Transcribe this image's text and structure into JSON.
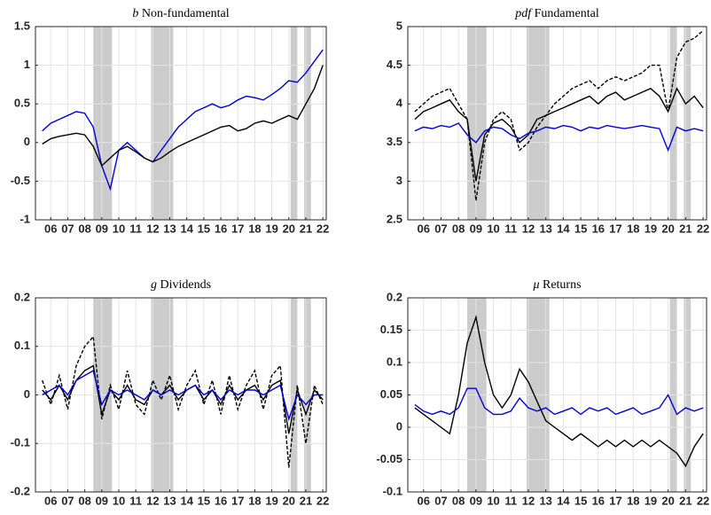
{
  "chart_data": [
    {
      "type": "line",
      "title_symbol": "b",
      "title": "Non-fundamental",
      "x": [
        5.5,
        6,
        6.5,
        7,
        7.5,
        8,
        8.5,
        9,
        9.5,
        10,
        10.5,
        11,
        11.5,
        12,
        12.5,
        13,
        13.5,
        14,
        14.5,
        15,
        15.5,
        16,
        16.5,
        17,
        17.5,
        18,
        18.5,
        19,
        19.5,
        20,
        20.5,
        21,
        21.5,
        22
      ],
      "xlim": [
        5.1,
        22.2
      ],
      "xticks": [
        {
          "value": 6,
          "label": "06"
        },
        {
          "value": 7,
          "label": "07"
        },
        {
          "value": 8,
          "label": "08"
        },
        {
          "value": 9,
          "label": "09"
        },
        {
          "value": 10,
          "label": "10"
        },
        {
          "value": 11,
          "label": "11"
        },
        {
          "value": 12,
          "label": "12"
        },
        {
          "value": 13,
          "label": "13"
        },
        {
          "value": 14,
          "label": "14"
        },
        {
          "value": 15,
          "label": "15"
        },
        {
          "value": 16,
          "label": "16"
        },
        {
          "value": 17,
          "label": "17"
        },
        {
          "value": 18,
          "label": "18"
        },
        {
          "value": 19,
          "label": "19"
        },
        {
          "value": 20,
          "label": "20"
        },
        {
          "value": 21,
          "label": "21"
        },
        {
          "value": 22,
          "label": "22"
        }
      ],
      "ylim": [
        -1,
        1.5
      ],
      "yticks": [
        -1,
        -0.5,
        0,
        0.5,
        1,
        1.5
      ],
      "grid": true,
      "shaded": [
        [
          8.5,
          9.6
        ],
        [
          11.9,
          13.2
        ],
        [
          20.1,
          20.5
        ],
        [
          20.9,
          21.3
        ]
      ],
      "shade_color": "#cccccc",
      "series": [
        {
          "color": "#0000d6",
          "style": "solid",
          "values": [
            0.15,
            0.25,
            0.3,
            0.35,
            0.4,
            0.38,
            0.2,
            -0.3,
            -0.6,
            -0.1,
            0.0,
            -0.1,
            -0.2,
            -0.25,
            -0.1,
            0.05,
            0.2,
            0.3,
            0.4,
            0.45,
            0.5,
            0.45,
            0.48,
            0.55,
            0.6,
            0.58,
            0.55,
            0.62,
            0.7,
            0.8,
            0.78,
            0.9,
            1.05,
            1.2
          ]
        },
        {
          "color": "#000000",
          "style": "solid",
          "values": [
            -0.02,
            0.05,
            0.08,
            0.1,
            0.12,
            0.1,
            -0.05,
            -0.3,
            -0.2,
            -0.1,
            -0.05,
            -0.12,
            -0.2,
            -0.25,
            -0.2,
            -0.12,
            -0.05,
            0.0,
            0.05,
            0.1,
            0.15,
            0.2,
            0.22,
            0.15,
            0.18,
            0.25,
            0.28,
            0.25,
            0.3,
            0.35,
            0.3,
            0.5,
            0.7,
            1.0
          ]
        }
      ]
    },
    {
      "type": "line",
      "title_symbol": "pdf",
      "title": "Fundamental",
      "x": [
        5.5,
        6,
        6.5,
        7,
        7.5,
        8,
        8.5,
        9,
        9.5,
        10,
        10.5,
        11,
        11.5,
        12,
        12.5,
        13,
        13.5,
        14,
        14.5,
        15,
        15.5,
        16,
        16.5,
        17,
        17.5,
        18,
        18.5,
        19,
        19.5,
        20,
        20.5,
        21,
        21.5,
        22
      ],
      "xlim": [
        5.1,
        22.2
      ],
      "xticks": [
        {
          "value": 6,
          "label": "06"
        },
        {
          "value": 7,
          "label": "07"
        },
        {
          "value": 8,
          "label": "08"
        },
        {
          "value": 9,
          "label": "09"
        },
        {
          "value": 10,
          "label": "10"
        },
        {
          "value": 11,
          "label": "11"
        },
        {
          "value": 12,
          "label": "12"
        },
        {
          "value": 13,
          "label": "13"
        },
        {
          "value": 14,
          "label": "14"
        },
        {
          "value": 15,
          "label": "15"
        },
        {
          "value": 16,
          "label": "16"
        },
        {
          "value": 17,
          "label": "17"
        },
        {
          "value": 18,
          "label": "18"
        },
        {
          "value": 19,
          "label": "19"
        },
        {
          "value": 20,
          "label": "20"
        },
        {
          "value": 21,
          "label": "21"
        },
        {
          "value": 22,
          "label": "22"
        }
      ],
      "ylim": [
        2.5,
        5
      ],
      "yticks": [
        2.5,
        3,
        3.5,
        4,
        4.5,
        5
      ],
      "grid": true,
      "shaded": [
        [
          8.5,
          9.6
        ],
        [
          11.9,
          13.2
        ],
        [
          20.1,
          20.5
        ],
        [
          20.9,
          21.3
        ]
      ],
      "shade_color": "#cccccc",
      "series": [
        {
          "color": "#000000",
          "style": "dashed",
          "values": [
            3.9,
            4.0,
            4.1,
            4.15,
            4.2,
            4.0,
            3.8,
            2.75,
            3.5,
            3.8,
            3.9,
            3.8,
            3.4,
            3.5,
            3.7,
            3.85,
            4.0,
            4.1,
            4.2,
            4.25,
            4.3,
            4.2,
            4.3,
            4.35,
            4.3,
            4.35,
            4.4,
            4.5,
            4.5,
            3.9,
            4.6,
            4.8,
            4.85,
            4.95
          ]
        },
        {
          "color": "#000000",
          "style": "solid",
          "values": [
            3.8,
            3.9,
            3.95,
            4.0,
            4.05,
            3.9,
            3.8,
            3.0,
            3.6,
            3.75,
            3.8,
            3.7,
            3.5,
            3.6,
            3.8,
            3.85,
            3.9,
            3.95,
            4.0,
            4.05,
            4.1,
            4.0,
            4.1,
            4.15,
            4.05,
            4.1,
            4.15,
            4.2,
            4.1,
            3.9,
            4.2,
            4.0,
            4.1,
            3.95
          ]
        },
        {
          "color": "#0000d6",
          "style": "solid",
          "values": [
            3.65,
            3.7,
            3.68,
            3.72,
            3.7,
            3.75,
            3.6,
            3.5,
            3.65,
            3.7,
            3.68,
            3.6,
            3.55,
            3.62,
            3.65,
            3.7,
            3.68,
            3.72,
            3.7,
            3.65,
            3.7,
            3.68,
            3.72,
            3.7,
            3.68,
            3.7,
            3.72,
            3.7,
            3.68,
            3.4,
            3.7,
            3.65,
            3.68,
            3.65
          ]
        }
      ]
    },
    {
      "type": "line",
      "title_symbol": "g",
      "title": "Dividends",
      "x": [
        5.5,
        6,
        6.5,
        7,
        7.5,
        8,
        8.5,
        9,
        9.5,
        10,
        10.5,
        11,
        11.5,
        12,
        12.5,
        13,
        13.5,
        14,
        14.5,
        15,
        15.5,
        16,
        16.5,
        17,
        17.5,
        18,
        18.5,
        19,
        19.5,
        20,
        20.5,
        21,
        21.5,
        22
      ],
      "xlim": [
        5.1,
        22.2
      ],
      "xticks": [
        {
          "value": 6,
          "label": "06"
        },
        {
          "value": 7,
          "label": "07"
        },
        {
          "value": 8,
          "label": "08"
        },
        {
          "value": 9,
          "label": "09"
        },
        {
          "value": 10,
          "label": "10"
        },
        {
          "value": 11,
          "label": "11"
        },
        {
          "value": 12,
          "label": "12"
        },
        {
          "value": 13,
          "label": "13"
        },
        {
          "value": 14,
          "label": "14"
        },
        {
          "value": 15,
          "label": "15"
        },
        {
          "value": 16,
          "label": "16"
        },
        {
          "value": 17,
          "label": "17"
        },
        {
          "value": 18,
          "label": "18"
        },
        {
          "value": 19,
          "label": "19"
        },
        {
          "value": 20,
          "label": "20"
        },
        {
          "value": 21,
          "label": "21"
        },
        {
          "value": 22,
          "label": "22"
        }
      ],
      "ylim": [
        -0.2,
        0.2
      ],
      "yticks": [
        -0.2,
        -0.1,
        0,
        0.1,
        0.2
      ],
      "grid": true,
      "shaded": [
        [
          8.5,
          9.6
        ],
        [
          11.9,
          13.2
        ],
        [
          20.1,
          20.5
        ],
        [
          20.9,
          21.3
        ]
      ],
      "shade_color": "#cccccc",
      "series": [
        {
          "color": "#000000",
          "style": "dashed",
          "values": [
            0.03,
            -0.02,
            0.04,
            -0.03,
            0.06,
            0.1,
            0.12,
            -0.05,
            0.02,
            -0.03,
            0.05,
            -0.02,
            -0.04,
            0.03,
            -0.01,
            0.04,
            -0.03,
            0.02,
            0.05,
            -0.02,
            0.03,
            -0.04,
            0.04,
            -0.03,
            0.02,
            0.05,
            -0.03,
            0.04,
            0.06,
            -0.15,
            0.02,
            -0.1,
            0.02,
            -0.02
          ]
        },
        {
          "color": "#000000",
          "style": "solid",
          "values": [
            0.01,
            -0.01,
            0.02,
            -0.01,
            0.03,
            0.05,
            0.06,
            -0.04,
            0.01,
            -0.01,
            0.02,
            -0.01,
            -0.02,
            0.01,
            0,
            0.02,
            -0.01,
            0.01,
            0.02,
            -0.01,
            0.01,
            -0.02,
            0.02,
            -0.01,
            0.01,
            0.02,
            -0.01,
            0.02,
            0.03,
            -0.08,
            0.01,
            -0.04,
            0.01,
            -0.01
          ]
        },
        {
          "color": "#0000d6",
          "style": "solid",
          "values": [
            0,
            0.01,
            0.02,
            0,
            0.03,
            0.04,
            0.05,
            -0.02,
            0.01,
            0,
            0.01,
            0,
            -0.01,
            0.01,
            0,
            0.01,
            0,
            0.01,
            0.02,
            0,
            0.01,
            -0.01,
            0.01,
            0,
            0.01,
            0.01,
            0,
            0.01,
            0.02,
            -0.05,
            0,
            -0.02,
            0,
            0
          ]
        }
      ]
    },
    {
      "type": "line",
      "title_symbol": "μ",
      "title": "Returns",
      "x": [
        5.5,
        6,
        6.5,
        7,
        7.5,
        8,
        8.5,
        9,
        9.5,
        10,
        10.5,
        11,
        11.5,
        12,
        12.5,
        13,
        13.5,
        14,
        14.5,
        15,
        15.5,
        16,
        16.5,
        17,
        17.5,
        18,
        18.5,
        19,
        19.5,
        20,
        20.5,
        21,
        21.5,
        22
      ],
      "xlim": [
        5.1,
        22.2
      ],
      "xticks": [
        {
          "value": 6,
          "label": "06"
        },
        {
          "value": 7,
          "label": "07"
        },
        {
          "value": 8,
          "label": "08"
        },
        {
          "value": 9,
          "label": "09"
        },
        {
          "value": 10,
          "label": "10"
        },
        {
          "value": 11,
          "label": "11"
        },
        {
          "value": 12,
          "label": "12"
        },
        {
          "value": 13,
          "label": "13"
        },
        {
          "value": 14,
          "label": "14"
        },
        {
          "value": 15,
          "label": "15"
        },
        {
          "value": 16,
          "label": "16"
        },
        {
          "value": 17,
          "label": "17"
        },
        {
          "value": 18,
          "label": "18"
        },
        {
          "value": 19,
          "label": "19"
        },
        {
          "value": 20,
          "label": "20"
        },
        {
          "value": 21,
          "label": "21"
        },
        {
          "value": 22,
          "label": "22"
        }
      ],
      "ylim": [
        -0.1,
        0.2
      ],
      "yticks": [
        -0.1,
        -0.05,
        0,
        0.05,
        0.1,
        0.15,
        0.2
      ],
      "grid": true,
      "shaded": [
        [
          8.5,
          9.6
        ],
        [
          11.9,
          13.2
        ],
        [
          20.1,
          20.5
        ],
        [
          20.9,
          21.3
        ]
      ],
      "shade_color": "#cccccc",
      "series": [
        {
          "color": "#000000",
          "style": "solid",
          "values": [
            0.03,
            0.02,
            0.01,
            0,
            -0.01,
            0.05,
            0.13,
            0.17,
            0.1,
            0.05,
            0.03,
            0.05,
            0.09,
            0.07,
            0.04,
            0.01,
            0,
            -0.01,
            -0.02,
            -0.01,
            -0.02,
            -0.03,
            -0.02,
            -0.03,
            -0.02,
            -0.03,
            -0.02,
            -0.03,
            -0.02,
            -0.03,
            -0.04,
            -0.06,
            -0.03,
            -0.01
          ]
        },
        {
          "color": "#0000d6",
          "style": "solid",
          "values": [
            0.035,
            0.025,
            0.02,
            0.025,
            0.02,
            0.03,
            0.06,
            0.06,
            0.03,
            0.02,
            0.02,
            0.025,
            0.045,
            0.03,
            0.025,
            0.03,
            0.02,
            0.025,
            0.03,
            0.02,
            0.03,
            0.025,
            0.03,
            0.02,
            0.025,
            0.03,
            0.02,
            0.025,
            0.03,
            0.05,
            0.02,
            0.03,
            0.025,
            0.03
          ]
        }
      ]
    }
  ]
}
